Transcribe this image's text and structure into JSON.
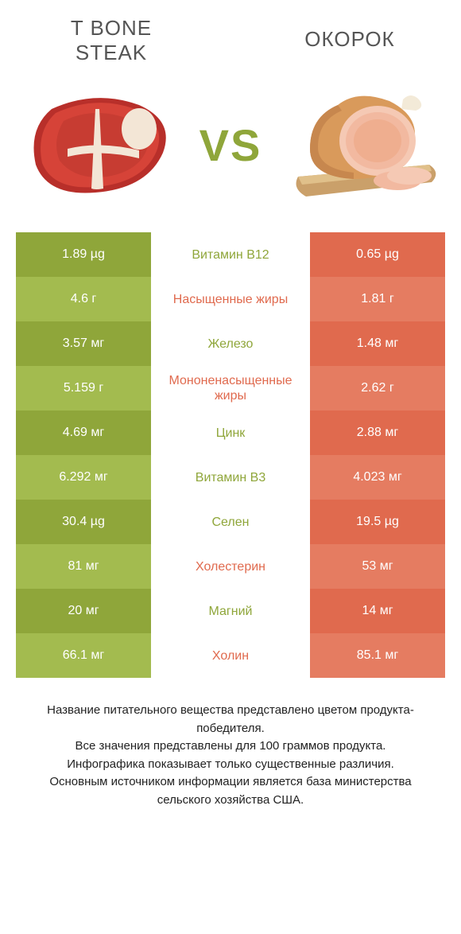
{
  "colors": {
    "green_dark": "#8fa63a",
    "green_light": "#a3bb4f",
    "orange_dark": "#e06a4e",
    "orange_light": "#e57c61",
    "mid_text_green": "#8fa63a",
    "mid_text_orange": "#e06a4e",
    "vs_color": "#8fa63a",
    "title_color": "#555555",
    "footer_color": "#222222",
    "background": "#ffffff"
  },
  "header": {
    "left_title": "T Bone steak",
    "right_title": "Окорок",
    "vs_label": "VS"
  },
  "rows": [
    {
      "nutrient": "Витамин B12",
      "left": "1.89 µg",
      "right": "0.65 µg",
      "winner": "left"
    },
    {
      "nutrient": "Насыщенные жиры",
      "left": "4.6 г",
      "right": "1.81 г",
      "winner": "right"
    },
    {
      "nutrient": "Железо",
      "left": "3.57 мг",
      "right": "1.48 мг",
      "winner": "left"
    },
    {
      "nutrient": "Мононенасыщенные жиры",
      "left": "5.159 г",
      "right": "2.62 г",
      "winner": "right"
    },
    {
      "nutrient": "Цинк",
      "left": "4.69 мг",
      "right": "2.88 мг",
      "winner": "left"
    },
    {
      "nutrient": "Витамин B3",
      "left": "6.292 мг",
      "right": "4.023 мг",
      "winner": "left"
    },
    {
      "nutrient": "Селен",
      "left": "30.4 µg",
      "right": "19.5 µg",
      "winner": "left"
    },
    {
      "nutrient": "Холестерин",
      "left": "81 мг",
      "right": "53 мг",
      "winner": "right"
    },
    {
      "nutrient": "Магний",
      "left": "20 мг",
      "right": "14 мг",
      "winner": "left"
    },
    {
      "nutrient": "Холин",
      "left": "66.1 мг",
      "right": "85.1 мг",
      "winner": "right"
    }
  ],
  "footer_lines": [
    "Название питательного вещества представлено цветом продукта-победителя.",
    "Все значения представлены для 100 граммов продукта.",
    "Инфографика показывает только существенные различия.",
    "Основным источником информации является база министерства сельского хозяйства США."
  ]
}
